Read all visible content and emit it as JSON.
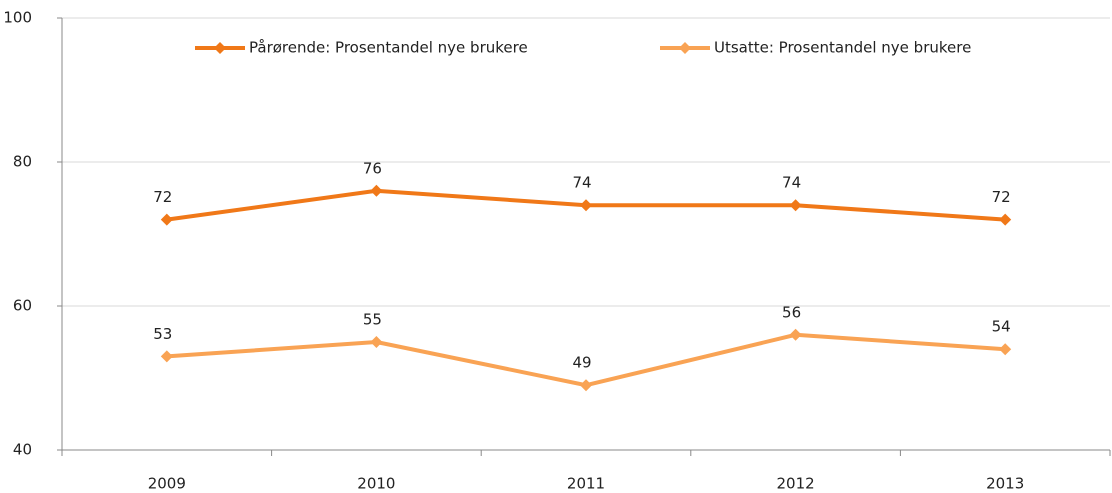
{
  "chart_data": {
    "type": "line",
    "categories": [
      "2009",
      "2010",
      "2011",
      "2012",
      "2013"
    ],
    "series": [
      {
        "name": "Pårørende: Prosentandel nye brukere",
        "color": "#f07818",
        "values": [
          72,
          76,
          74,
          74,
          72
        ]
      },
      {
        "name": "Utsatte: Prosentandel nye brukere",
        "color": "#f9a354",
        "values": [
          53,
          55,
          49,
          56,
          54
        ]
      }
    ],
    "ylim": [
      40,
      100
    ],
    "yticks": [
      40,
      60,
      80,
      100
    ],
    "grid": true,
    "legend": "top"
  }
}
